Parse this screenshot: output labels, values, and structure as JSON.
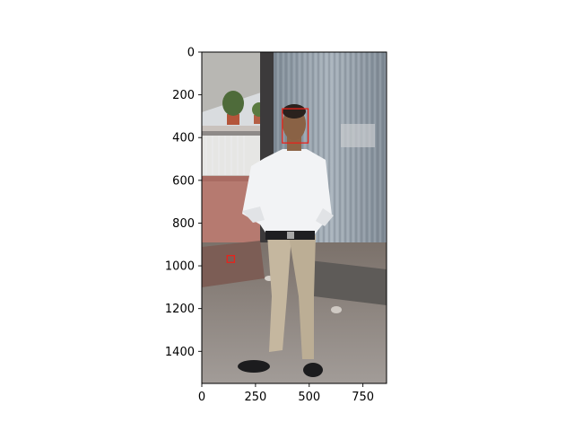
{
  "figure": {
    "image_desc": "man in white shirt and khaki trousers standing in front of corrugated metal wall",
    "x_ticks": [
      0,
      250,
      500,
      750
    ],
    "y_ticks": [
      0,
      200,
      400,
      600,
      800,
      1000,
      1200,
      1400
    ],
    "xlim": [
      0,
      860
    ],
    "ylim": [
      1550,
      0
    ],
    "boxes": [
      {
        "label": "face",
        "x0": 375,
        "y0": 265,
        "x1": 495,
        "y1": 425,
        "color": "#e8231b"
      },
      {
        "label": "small-detection",
        "x0": 118,
        "y0": 952,
        "x1": 152,
        "y1": 984,
        "color": "#e8231b"
      }
    ]
  }
}
